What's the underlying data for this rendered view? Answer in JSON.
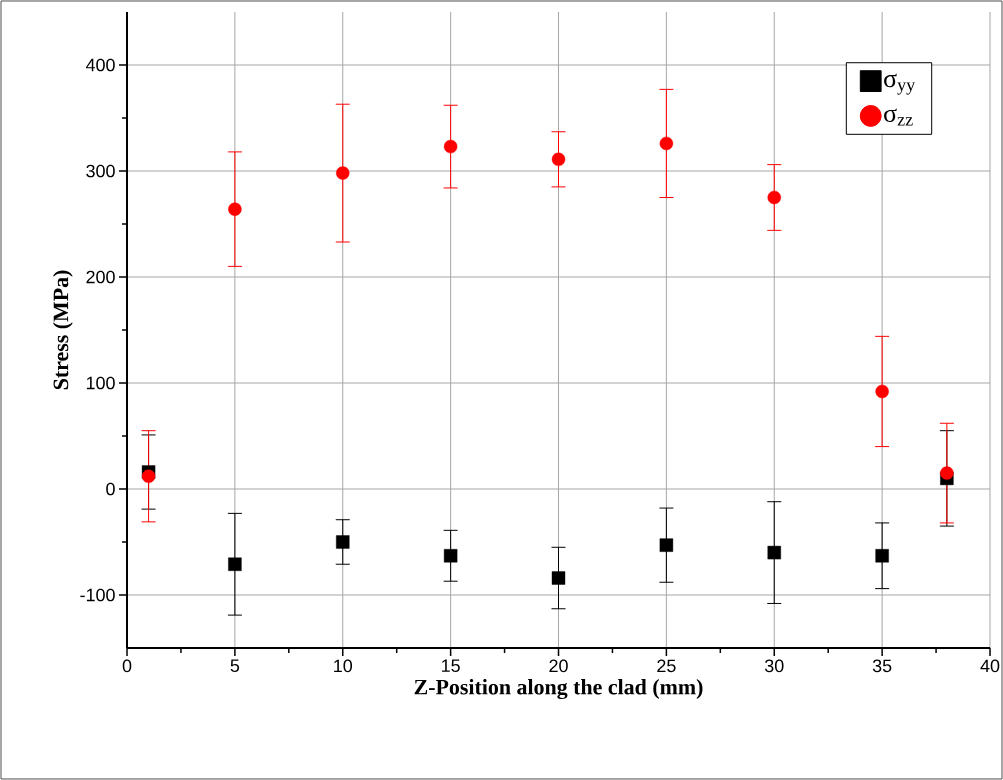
{
  "chart_data": {
    "type": "scatter",
    "xlabel": "Z-Position along the clad (mm)",
    "ylabel": "Stress (MPa)",
    "x": [
      1,
      5,
      10,
      15,
      20,
      25,
      30,
      35,
      38
    ],
    "series": [
      {
        "name": "σ$_{yy}$",
        "color": "#000000",
        "marker": "square",
        "values": [
          16,
          -71,
          -50,
          -63,
          -84,
          -53,
          -60,
          -63,
          10
        ],
        "errors": [
          35,
          48,
          21,
          24,
          29,
          35,
          48,
          31,
          45
        ]
      },
      {
        "name": "σ$_{zz}$",
        "color": "#ff0000",
        "marker": "circle",
        "values": [
          12,
          264,
          298,
          323,
          311,
          326,
          275,
          92,
          15
        ],
        "errors": [
          43,
          54,
          65,
          39,
          26,
          51,
          31,
          52,
          47
        ]
      }
    ],
    "xlim": [
      0,
      40
    ],
    "xticks": [
      0,
      5,
      10,
      15,
      20,
      25,
      30,
      35,
      40
    ],
    "ylim": [
      -150,
      450
    ],
    "yticks": [
      -100,
      0,
      100,
      200,
      300,
      400
    ],
    "grid": true,
    "legend": "top right"
  }
}
